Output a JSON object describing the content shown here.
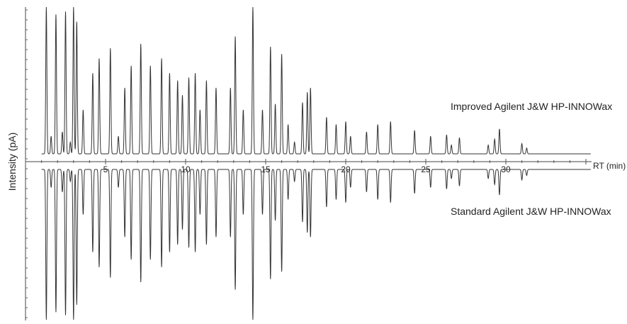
{
  "chart_data": {
    "type": "line",
    "ylabel": "Intensity (pA)",
    "xlabel": "RT (min)",
    "x_ticks": [
      5,
      10,
      15,
      20,
      25,
      30
    ],
    "xlim": [
      0,
      36
    ],
    "grid": false,
    "layout": "mirror",
    "series": [
      {
        "name": "Improved Agilent J&W HP-INNOWax",
        "direction": "up",
        "peaks": [
          [
            1.3,
            1.0
          ],
          [
            1.6,
            0.12
          ],
          [
            1.9,
            0.95
          ],
          [
            2.3,
            0.15
          ],
          [
            2.5,
            0.97
          ],
          [
            2.8,
            0.08
          ],
          [
            3.0,
            1.0
          ],
          [
            3.2,
            0.9
          ],
          [
            3.6,
            0.3
          ],
          [
            4.2,
            0.55
          ],
          [
            4.6,
            0.65
          ],
          [
            5.3,
            0.72
          ],
          [
            5.8,
            0.12
          ],
          [
            6.2,
            0.45
          ],
          [
            6.6,
            0.6
          ],
          [
            7.2,
            0.75
          ],
          [
            7.8,
            0.6
          ],
          [
            8.5,
            0.65
          ],
          [
            9.0,
            0.55
          ],
          [
            9.5,
            0.5
          ],
          [
            9.8,
            0.4
          ],
          [
            10.2,
            0.52
          ],
          [
            10.6,
            0.55
          ],
          [
            10.9,
            0.3
          ],
          [
            11.3,
            0.5
          ],
          [
            11.9,
            0.45
          ],
          [
            12.8,
            0.45
          ],
          [
            13.1,
            0.8
          ],
          [
            13.6,
            0.3
          ],
          [
            14.2,
            1.0
          ],
          [
            14.8,
            0.3
          ],
          [
            15.3,
            0.73
          ],
          [
            15.6,
            0.34
          ],
          [
            16.0,
            0.68
          ],
          [
            16.4,
            0.2
          ],
          [
            16.8,
            0.08
          ],
          [
            17.3,
            0.35
          ],
          [
            17.6,
            0.42
          ],
          [
            17.8,
            0.45
          ],
          [
            18.8,
            0.25
          ],
          [
            19.4,
            0.2
          ],
          [
            20.0,
            0.22
          ],
          [
            20.3,
            0.12
          ],
          [
            21.3,
            0.15
          ],
          [
            22.0,
            0.2
          ],
          [
            22.8,
            0.22
          ],
          [
            24.3,
            0.16
          ],
          [
            25.3,
            0.12
          ],
          [
            26.3,
            0.13
          ],
          [
            26.6,
            0.06
          ],
          [
            27.1,
            0.11
          ],
          [
            28.9,
            0.06
          ],
          [
            29.3,
            0.1
          ],
          [
            29.6,
            0.17
          ],
          [
            31.0,
            0.07
          ],
          [
            31.3,
            0.04
          ]
        ]
      },
      {
        "name": "Standard Agilent J&W HP-INNOWax",
        "direction": "down",
        "peaks": [
          [
            1.3,
            1.0
          ],
          [
            1.6,
            0.12
          ],
          [
            1.9,
            0.95
          ],
          [
            2.3,
            0.15
          ],
          [
            2.5,
            0.97
          ],
          [
            2.8,
            0.08
          ],
          [
            3.0,
            1.0
          ],
          [
            3.2,
            0.9
          ],
          [
            3.6,
            0.3
          ],
          [
            4.2,
            0.55
          ],
          [
            4.6,
            0.65
          ],
          [
            5.3,
            0.72
          ],
          [
            5.8,
            0.12
          ],
          [
            6.2,
            0.45
          ],
          [
            6.6,
            0.6
          ],
          [
            7.2,
            0.75
          ],
          [
            7.8,
            0.6
          ],
          [
            8.5,
            0.65
          ],
          [
            9.0,
            0.55
          ],
          [
            9.5,
            0.5
          ],
          [
            9.8,
            0.4
          ],
          [
            10.2,
            0.52
          ],
          [
            10.6,
            0.55
          ],
          [
            10.9,
            0.3
          ],
          [
            11.3,
            0.5
          ],
          [
            11.9,
            0.45
          ],
          [
            12.8,
            0.45
          ],
          [
            13.1,
            0.8
          ],
          [
            13.6,
            0.3
          ],
          [
            14.2,
            1.0
          ],
          [
            14.8,
            0.3
          ],
          [
            15.3,
            0.73
          ],
          [
            15.6,
            0.34
          ],
          [
            16.0,
            0.68
          ],
          [
            16.4,
            0.2
          ],
          [
            16.8,
            0.08
          ],
          [
            17.3,
            0.35
          ],
          [
            17.6,
            0.42
          ],
          [
            17.8,
            0.45
          ],
          [
            18.8,
            0.25
          ],
          [
            19.4,
            0.2
          ],
          [
            20.0,
            0.22
          ],
          [
            20.3,
            0.12
          ],
          [
            21.3,
            0.15
          ],
          [
            22.0,
            0.2
          ],
          [
            22.8,
            0.22
          ],
          [
            24.3,
            0.16
          ],
          [
            25.3,
            0.12
          ],
          [
            26.3,
            0.13
          ],
          [
            26.6,
            0.06
          ],
          [
            27.1,
            0.11
          ],
          [
            28.9,
            0.06
          ],
          [
            29.3,
            0.1
          ],
          [
            29.6,
            0.17
          ],
          [
            31.0,
            0.07
          ],
          [
            31.3,
            0.04
          ]
        ]
      }
    ]
  }
}
